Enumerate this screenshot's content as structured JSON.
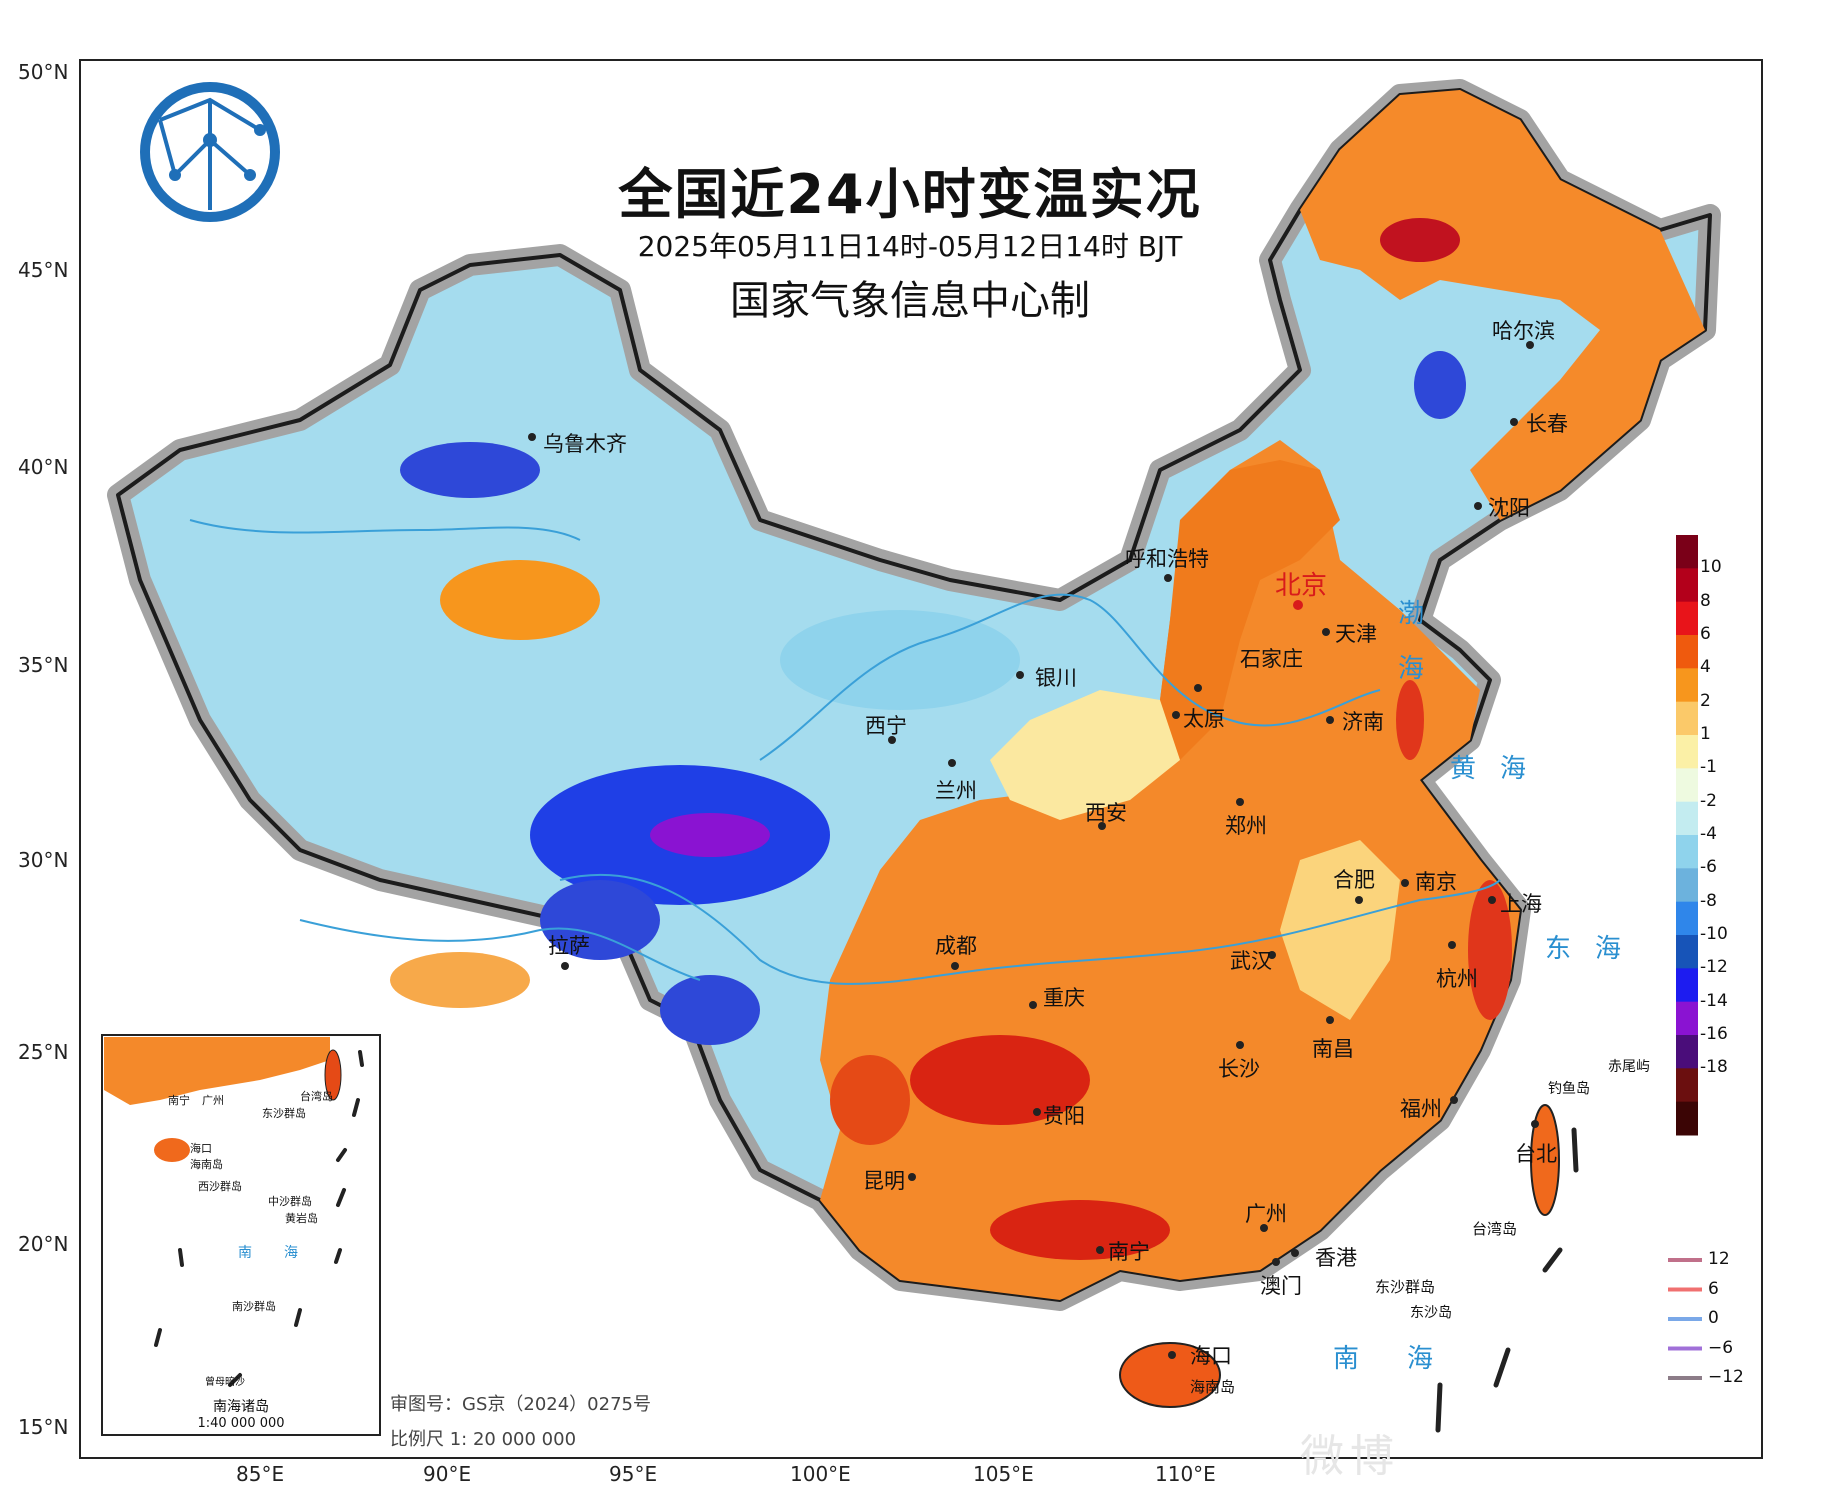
{
  "title": "全国近24小时变温实况",
  "subtitle": "2025年05月11日14时-05月12日14时 BJT",
  "maker": "国家气象信息中心制",
  "logo_icon": "globe-network-logo-icon",
  "axes": {
    "latitudes": [
      "50°N",
      "45°N",
      "40°N",
      "35°N",
      "30°N",
      "25°N",
      "20°N",
      "15°N"
    ],
    "longitudes": [
      "85°E",
      "90°E",
      "95°E",
      "100°E",
      "105°E",
      "110°E"
    ]
  },
  "cities": {
    "beijing": "北京",
    "tianjin": "天津",
    "shijiazhuang": "石家庄",
    "taiyuan": "太原",
    "jinan": "济南",
    "zhengzhou": "郑州",
    "xian": "西安",
    "lanzhou": "兰州",
    "xining": "西宁",
    "yinchuan": "银川",
    "hohhot": "呼和浩特",
    "urumqi": "乌鲁木齐",
    "lhasa": "拉萨",
    "chengdu": "成都",
    "chongqing": "重庆",
    "guiyang": "贵阳",
    "kunming": "昆明",
    "nanning": "南宁",
    "guangzhou": "广州",
    "hongkong": "香港",
    "macau": "澳门",
    "haikou": "海口",
    "hainan": "海南岛",
    "changsha": "长沙",
    "wuhan": "武汉",
    "nanchang": "南昌",
    "hefei": "合肥",
    "nanjing": "南京",
    "shanghai": "上海",
    "hangzhou": "杭州",
    "fuzhou": "福州",
    "taipei": "台北",
    "taiwan": "台湾岛",
    "shenyang": "沈阳",
    "changchun": "长春",
    "harbin": "哈尔滨"
  },
  "seas": {
    "bohai_1": "渤",
    "bohai_2": "海",
    "yellow_sea": "黄海",
    "east_sea": "东海",
    "south_sea": "南海"
  },
  "islands": {
    "diaoyu": "钓鱼岛",
    "chiwei": "赤尾屿",
    "dongsha_islands": "东沙群岛",
    "dongsha": "东沙岛"
  },
  "inset": {
    "title": "南海诸岛",
    "scale": "1:40 000 000",
    "labels": {
      "nanning": "南宁",
      "guangzhou": "广州",
      "taiwan": "台湾岛",
      "haikou": "海口",
      "hainan": "海南岛",
      "dongsha": "东沙群岛",
      "xisha": "西沙群岛",
      "zhongsha": "中沙群岛",
      "huangyan": "黄岩岛",
      "nansha": "南沙群岛",
      "zengmu": "曾母暗沙",
      "sea_1": "南",
      "sea_2": "海"
    }
  },
  "footnotes": {
    "review_no": "审图号：GS京（2024）0275号",
    "scale": "比例尺 1: 20 000 000"
  },
  "legend": {
    "ticks": [
      "10",
      "8",
      "6",
      "4",
      "2",
      "1",
      "-1",
      "-2",
      "-4",
      "-6",
      "-8",
      "-10",
      "-12",
      "-14",
      "-16",
      "-18"
    ],
    "colors": [
      "#7a0018",
      "#b3001b",
      "#e8141a",
      "#ef5a0e",
      "#f7961d",
      "#fbc969",
      "#fbf0a6",
      "#eefae0",
      "#c3ecf0",
      "#8fd3ec",
      "#6cb2dd",
      "#2f86ea",
      "#1754b8",
      "#1d1cf0",
      "#8a13d2",
      "#4a0d7a",
      "#6b0f0f",
      "#3b0505"
    ]
  },
  "isolines": {
    "labels": [
      "12",
      "6",
      "0",
      "−6",
      "−12"
    ],
    "colors": [
      "#c0708a",
      "#f07070",
      "#7aa8e8",
      "#a070d8",
      "#8c7c88"
    ]
  },
  "watermark": "微博"
}
